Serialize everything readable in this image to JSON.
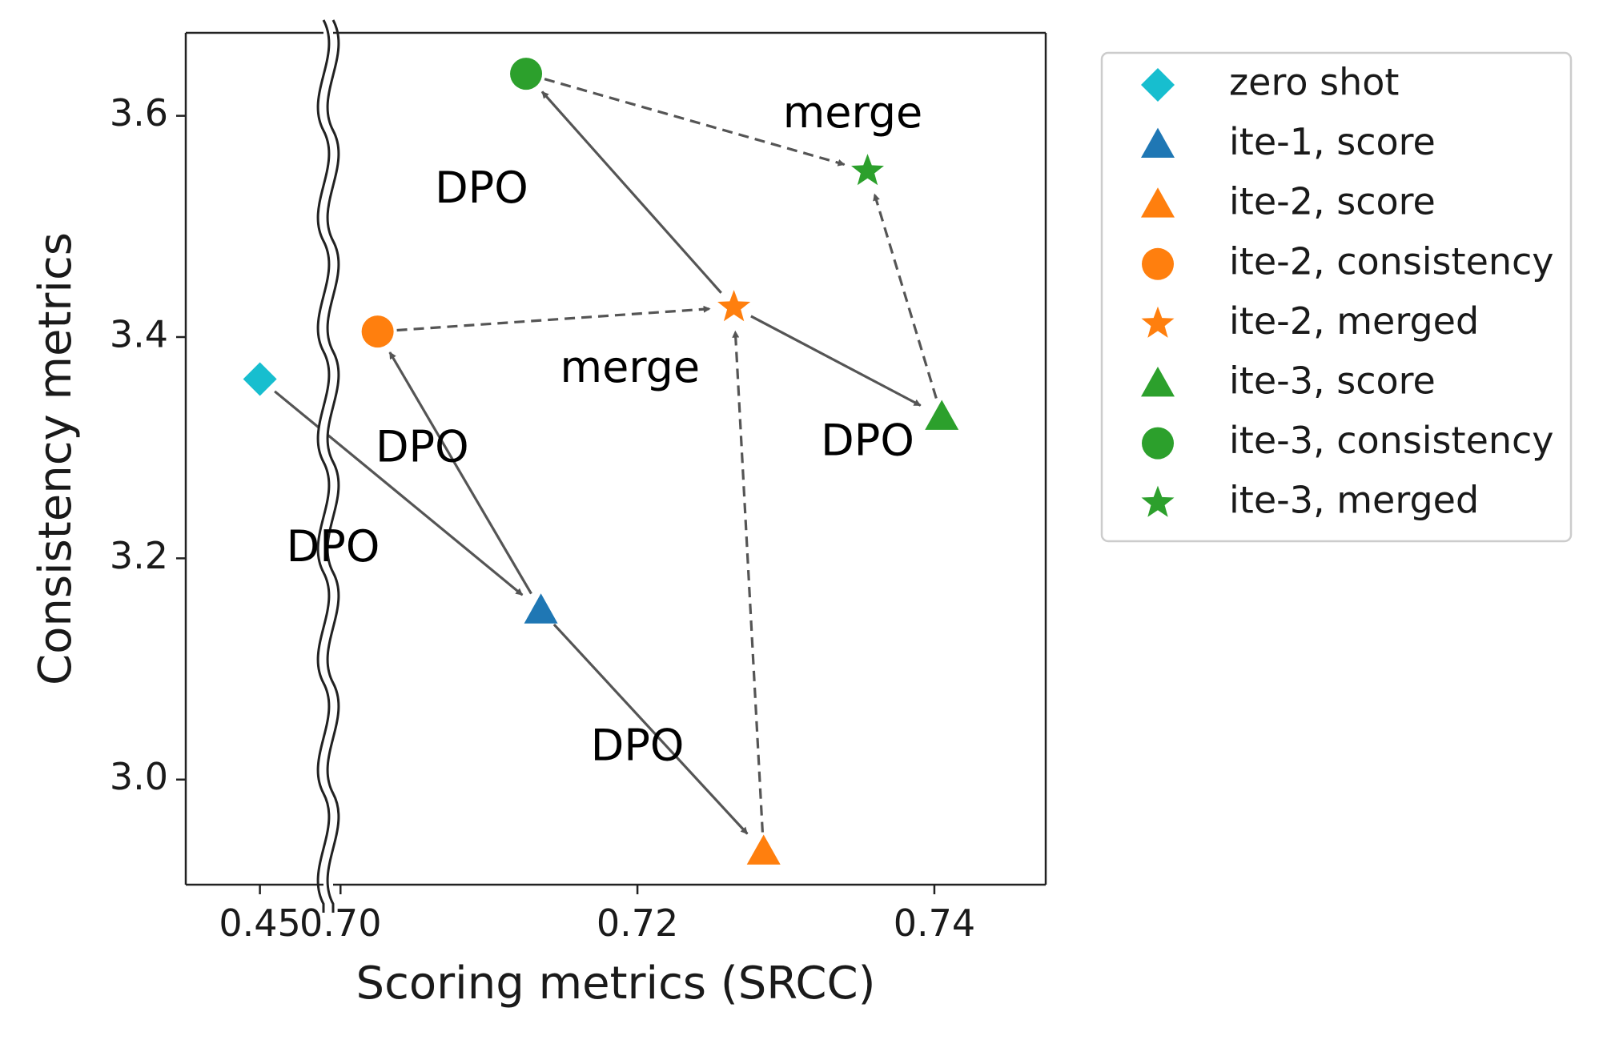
{
  "chart_data": {
    "type": "scatter",
    "title": "",
    "xlabel": "Scoring metrics (SRCC)",
    "ylabel": "Consistency metrics",
    "axis_break": "broken x-axis between 0.45 and 0.70",
    "x_ticks": [
      {
        "value": 0.45,
        "label": "0.45"
      },
      {
        "value": 0.7,
        "label": "0.70"
      },
      {
        "value": 0.72,
        "label": "0.72"
      },
      {
        "value": 0.74,
        "label": "0.74"
      }
    ],
    "y_ticks": [
      {
        "value": 3.0,
        "label": "3.0"
      },
      {
        "value": 3.2,
        "label": "3.2"
      },
      {
        "value": 3.4,
        "label": "3.4"
      },
      {
        "value": 3.6,
        "label": "3.6"
      }
    ],
    "xlim_left_segment": [
      0.443,
      0.456
    ],
    "xlim_right_segment": [
      0.6995,
      0.7475
    ],
    "ylim": [
      2.905,
      3.675
    ],
    "legend_position": "outside right, top",
    "points": [
      {
        "id": "zero-shot",
        "label": "zero shot",
        "x": 0.45,
        "y": 3.362,
        "marker": "diamond",
        "color": "#17becf"
      },
      {
        "id": "ite1-score",
        "label": "ite-1, score",
        "x": 0.7135,
        "y": 3.153,
        "marker": "triangle",
        "color": "#1f77b4"
      },
      {
        "id": "ite2-score",
        "label": "ite-2, score",
        "x": 0.7285,
        "y": 2.935,
        "marker": "triangle",
        "color": "#ff7f0e"
      },
      {
        "id": "ite2-consistency",
        "label": "ite-2, consistency",
        "x": 0.7025,
        "y": 3.405,
        "marker": "circle",
        "color": "#ff7f0e"
      },
      {
        "id": "ite2-merged",
        "label": "ite-2, merged",
        "x": 0.7265,
        "y": 3.427,
        "marker": "star",
        "color": "#ff7f0e"
      },
      {
        "id": "ite3-score",
        "label": "ite-3, score",
        "x": 0.7405,
        "y": 3.328,
        "marker": "triangle",
        "color": "#2ca02c"
      },
      {
        "id": "ite3-consistency",
        "label": "ite-3, consistency",
        "x": 0.7125,
        "y": 3.638,
        "marker": "circle",
        "color": "#2ca02c"
      },
      {
        "id": "ite3-merged",
        "label": "ite-3, merged",
        "x": 0.7355,
        "y": 3.55,
        "marker": "star",
        "color": "#2ca02c"
      }
    ],
    "arrows": [
      {
        "from": "zero-shot",
        "to": "ite1-score",
        "style": "solid"
      },
      {
        "from": "ite1-score",
        "to": "ite2-consistency",
        "style": "solid"
      },
      {
        "from": "ite1-score",
        "to": "ite2-score",
        "style": "solid"
      },
      {
        "from": "ite2-consistency",
        "to": "ite2-merged",
        "style": "dashed"
      },
      {
        "from": "ite2-score",
        "to": "ite2-merged",
        "style": "dashed"
      },
      {
        "from": "ite2-merged",
        "to": "ite3-consistency",
        "style": "solid"
      },
      {
        "from": "ite2-merged",
        "to": "ite3-score",
        "style": "solid"
      },
      {
        "from": "ite3-consistency",
        "to": "ite3-merged",
        "style": "dashed"
      },
      {
        "from": "ite3-score",
        "to": "ite3-merged",
        "style": "dashed"
      }
    ],
    "annotations": [
      {
        "text": "merge",
        "x": 0.7345,
        "y": 3.6
      },
      {
        "text": "DPO",
        "x": 0.7095,
        "y": 3.532
      },
      {
        "text": "merge",
        "x": 0.7195,
        "y": 3.37
      },
      {
        "text": "DPO",
        "x": 0.7355,
        "y": 3.304
      },
      {
        "text": "DPO",
        "x": 0.7055,
        "y": 3.298
      },
      {
        "text": "DPO",
        "x": 0.6995,
        "y": 3.208
      },
      {
        "text": "DPO",
        "x": 0.72,
        "y": 3.028
      }
    ],
    "legend": [
      {
        "label": "zero shot",
        "marker": "diamond",
        "color": "#17becf"
      },
      {
        "label": "ite-1, score",
        "marker": "triangle",
        "color": "#1f77b4"
      },
      {
        "label": "ite-2, score",
        "marker": "triangle",
        "color": "#ff7f0e"
      },
      {
        "label": "ite-2, consistency",
        "marker": "circle",
        "color": "#ff7f0e"
      },
      {
        "label": "ite-2, merged",
        "marker": "star",
        "color": "#ff7f0e"
      },
      {
        "label": "ite-3, score",
        "marker": "triangle",
        "color": "#2ca02c"
      },
      {
        "label": "ite-3, consistency",
        "marker": "circle",
        "color": "#2ca02c"
      },
      {
        "label": "ite-3, merged",
        "marker": "star",
        "color": "#2ca02c"
      }
    ]
  }
}
